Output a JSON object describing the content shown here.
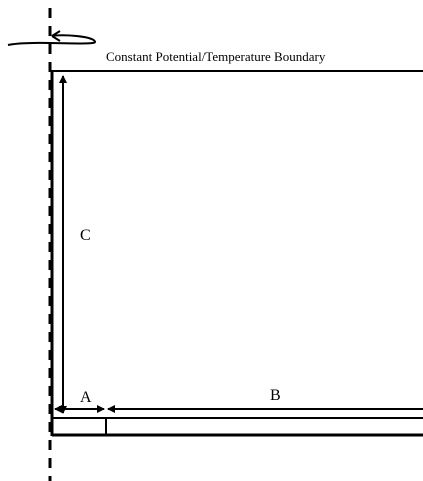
{
  "boundary_label": "Constant Potential/Temperature Boundary",
  "dimensions": {
    "a": "A",
    "b": "B",
    "c": "C"
  }
}
